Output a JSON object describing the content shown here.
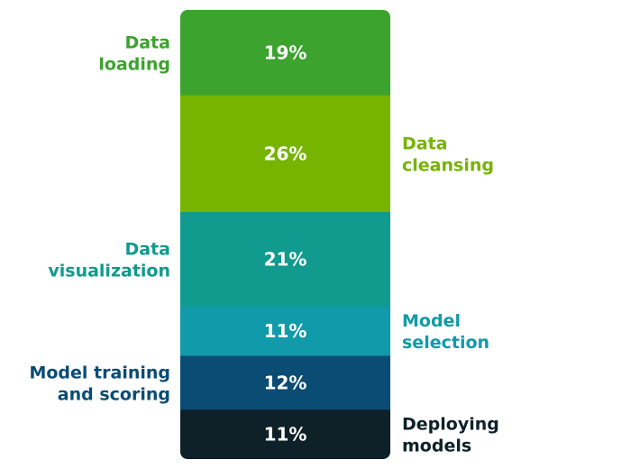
{
  "chart_data": {
    "type": "bar",
    "orientation": "stacked-vertical",
    "series": [
      {
        "label_lines": [
          "Data",
          "loading"
        ],
        "value": 19,
        "value_text": "19%",
        "color": "#3ca32e",
        "label_color": "#3ca32e",
        "label_side": "left"
      },
      {
        "label_lines": [
          "Data",
          "cleansing"
        ],
        "value": 26,
        "value_text": "26%",
        "color": "#76b400",
        "label_color": "#76b400",
        "label_side": "right"
      },
      {
        "label_lines": [
          "Data",
          "visualization"
        ],
        "value": 21,
        "value_text": "21%",
        "color": "#119a8e",
        "label_color": "#119a8e",
        "label_side": "left"
      },
      {
        "label_lines": [
          "Model",
          "selection"
        ],
        "value": 11,
        "value_text": "11%",
        "color": "#119aaa",
        "label_color": "#119aaa",
        "label_side": "right"
      },
      {
        "label_lines": [
          "Model training",
          "and scoring"
        ],
        "value": 12,
        "value_text": "12%",
        "color": "#0a4c74",
        "label_color": "#0a4c74",
        "label_side": "left"
      },
      {
        "label_lines": [
          "Deploying",
          "models"
        ],
        "value": 11,
        "value_text": "11%",
        "color": "#0e2128",
        "label_color": "#0e2128",
        "label_side": "right"
      }
    ]
  }
}
